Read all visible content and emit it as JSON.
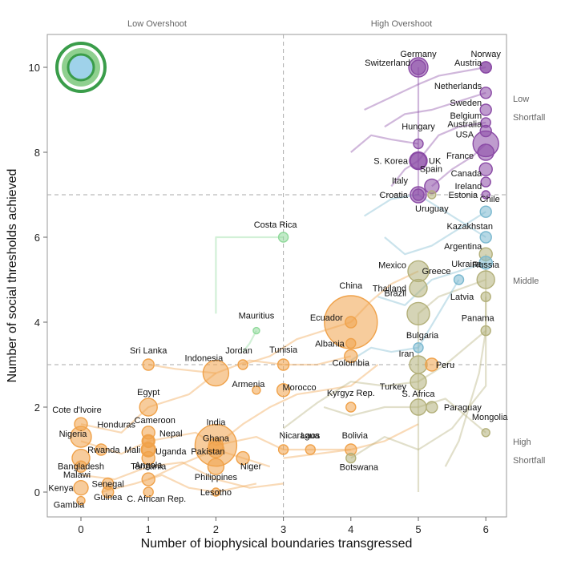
{
  "chart_data": {
    "type": "scatter",
    "xlabel": "Number of biophysical boundaries transgressed",
    "ylabel": "Number of social thresholds achieved",
    "xlim": [
      -0.45,
      6.3
    ],
    "ylim": [
      -0.3,
      10.7
    ],
    "x_ticks": [
      "0",
      "1",
      "2",
      "3",
      "4",
      "5",
      "6"
    ],
    "y_ticks": [
      "0",
      "2",
      "4",
      "6",
      "8",
      "10"
    ],
    "grid": false,
    "reference_lines": {
      "x": 3,
      "y": [
        3,
        7
      ]
    },
    "region_labels": {
      "top": [
        "Low Overshoot",
        "High Overshoot"
      ],
      "right": [
        [
          "Low",
          "Shortfall"
        ],
        [
          "Middle"
        ],
        [
          "High",
          "Shortfall"
        ]
      ]
    },
    "colors": {
      "low_overshoot_high_shortfall": "#f0a24a",
      "low_overshoot_middle": "#8fd99a",
      "high_overshoot_high_shortfall": "#b3b07a",
      "high_overshoot_middle": "#7ab8cf",
      "high_overshoot_low_shortfall": "#8a4aa5",
      "legend_ring_outer": "#3a9d4a",
      "legend_ring_inner": "#8fd08f",
      "legend_core": "#9fd2ea"
    },
    "countries": [
      {
        "name": "Germany",
        "x": 5,
        "y": 10,
        "group": "purple"
      },
      {
        "name": "Switzerland",
        "x": 5,
        "y": 10,
        "group": "purple"
      },
      {
        "name": "Norway",
        "x": 6,
        "y": 10,
        "group": "purple"
      },
      {
        "name": "Austria",
        "x": 6,
        "y": 10,
        "group": "purple"
      },
      {
        "name": "Netherlands",
        "x": 6,
        "y": 9.4,
        "group": "purple"
      },
      {
        "name": "Sweden",
        "x": 6,
        "y": 9,
        "group": "purple"
      },
      {
        "name": "Belgium",
        "x": 6,
        "y": 8.7,
        "group": "purple"
      },
      {
        "name": "Australia",
        "x": 6,
        "y": 8.5,
        "group": "purple"
      },
      {
        "name": "USA",
        "x": 6,
        "y": 8.2,
        "group": "purple"
      },
      {
        "name": "France",
        "x": 6,
        "y": 8.0,
        "group": "purple"
      },
      {
        "name": "Hungary",
        "x": 5,
        "y": 8.2,
        "group": "purple"
      },
      {
        "name": "S. Korea",
        "x": 5,
        "y": 7.8,
        "group": "purple"
      },
      {
        "name": "UK",
        "x": 5,
        "y": 7.8,
        "group": "purple"
      },
      {
        "name": "Canada",
        "x": 6,
        "y": 7.6,
        "group": "purple"
      },
      {
        "name": "Ireland",
        "x": 6,
        "y": 7.3,
        "group": "purple"
      },
      {
        "name": "Spain",
        "x": 5.2,
        "y": 7.2,
        "group": "purple"
      },
      {
        "name": "Italy",
        "x": 5,
        "y": 7.0,
        "group": "purple"
      },
      {
        "name": "Estonia",
        "x": 6,
        "y": 7.0,
        "group": "purple"
      },
      {
        "name": "Croatia",
        "x": 5,
        "y": 7.0,
        "group": "purple"
      },
      {
        "name": "Uruguay",
        "x": 5.2,
        "y": 7.0,
        "group": "olive"
      },
      {
        "name": "Chile",
        "x": 6,
        "y": 6.6,
        "group": "blue"
      },
      {
        "name": "Kazakhstan",
        "x": 6,
        "y": 6.0,
        "group": "blue"
      },
      {
        "name": "Costa Rica",
        "x": 3,
        "y": 6,
        "group": "green"
      },
      {
        "name": "Mexico",
        "x": 5,
        "y": 5.2,
        "group": "olive"
      },
      {
        "name": "Argentina",
        "x": 6,
        "y": 5.6,
        "group": "olive"
      },
      {
        "name": "Ukraine",
        "x": 6,
        "y": 5.4,
        "group": "blue"
      },
      {
        "name": "Greece",
        "x": 5.6,
        "y": 5.0,
        "group": "blue"
      },
      {
        "name": "Russia",
        "x": 6,
        "y": 5.0,
        "group": "olive"
      },
      {
        "name": "Thailand",
        "x": 5,
        "y": 4.8,
        "group": "olive"
      },
      {
        "name": "Latvia",
        "x": 6,
        "y": 4.6,
        "group": "olive"
      },
      {
        "name": "Brazil",
        "x": 5,
        "y": 4.2,
        "group": "olive"
      },
      {
        "name": "China",
        "x": 4,
        "y": 4,
        "group": "orange"
      },
      {
        "name": "Ecuador",
        "x": 4,
        "y": 4,
        "group": "orange"
      },
      {
        "name": "Panama",
        "x": 6,
        "y": 3.8,
        "group": "olive"
      },
      {
        "name": "Mauritius",
        "x": 2.6,
        "y": 3.8,
        "group": "green"
      },
      {
        "name": "Albania",
        "x": 4,
        "y": 3.5,
        "group": "orange"
      },
      {
        "name": "Bulgaria",
        "x": 5,
        "y": 3.4,
        "group": "blue"
      },
      {
        "name": "Colombia",
        "x": 4,
        "y": 3.2,
        "group": "orange"
      },
      {
        "name": "Sri Lanka",
        "x": 1,
        "y": 3,
        "group": "orange"
      },
      {
        "name": "Indonesia",
        "x": 2,
        "y": 2.8,
        "group": "orange"
      },
      {
        "name": "Jordan",
        "x": 2.4,
        "y": 3.0,
        "group": "orange"
      },
      {
        "name": "Tunisia",
        "x": 3,
        "y": 3.0,
        "group": "orange"
      },
      {
        "name": "Iran",
        "x": 5,
        "y": 3.0,
        "group": "olive"
      },
      {
        "name": "Peru",
        "x": 5.2,
        "y": 3.0,
        "group": "orange"
      },
      {
        "name": "Turkey",
        "x": 5,
        "y": 2.6,
        "group": "olive"
      },
      {
        "name": "Armenia",
        "x": 2.6,
        "y": 2.4,
        "group": "orange"
      },
      {
        "name": "Morocco",
        "x": 3,
        "y": 2.4,
        "group": "orange"
      },
      {
        "name": "Egypt",
        "x": 1,
        "y": 2,
        "group": "orange"
      },
      {
        "name": "Kyrgyz Rep.",
        "x": 4,
        "y": 2.0,
        "group": "orange"
      },
      {
        "name": "S. Africa",
        "x": 5,
        "y": 2.0,
        "group": "olive"
      },
      {
        "name": "Paraguay",
        "x": 5.2,
        "y": 2.0,
        "group": "olive"
      },
      {
        "name": "Cote d'Ivoire",
        "x": 0,
        "y": 1.6,
        "group": "orange"
      },
      {
        "name": "Nigeria",
        "x": 0,
        "y": 1.3,
        "group": "orange"
      },
      {
        "name": "Cameroon",
        "x": 1,
        "y": 1.4,
        "group": "orange"
      },
      {
        "name": "Honduras",
        "x": 1,
        "y": 1.2,
        "group": "orange"
      },
      {
        "name": "Nepal",
        "x": 1,
        "y": 1.2,
        "group": "orange"
      },
      {
        "name": "Uganda",
        "x": 1,
        "y": 1.0,
        "group": "orange"
      },
      {
        "name": "Rwanda",
        "x": 0.3,
        "y": 1.0,
        "group": "orange"
      },
      {
        "name": "Mali",
        "x": 1,
        "y": 1.0,
        "group": "orange"
      },
      {
        "name": "India",
        "x": 2,
        "y": 1.1,
        "group": "orange"
      },
      {
        "name": "Ghana",
        "x": 2,
        "y": 1.1,
        "group": "orange"
      },
      {
        "name": "Pakistan",
        "x": 2,
        "y": 1.0,
        "group": "orange"
      },
      {
        "name": "Nicaragua",
        "x": 3,
        "y": 1.0,
        "group": "orange"
      },
      {
        "name": "Laos",
        "x": 3.4,
        "y": 1.0,
        "group": "orange"
      },
      {
        "name": "Bolivia",
        "x": 4,
        "y": 1.0,
        "group": "orange"
      },
      {
        "name": "Mongolia",
        "x": 6,
        "y": 1.4,
        "group": "olive"
      },
      {
        "name": "Tanzania",
        "x": 1,
        "y": 0.8,
        "group": "orange"
      },
      {
        "name": "Niger",
        "x": 2.4,
        "y": 0.8,
        "group": "orange"
      },
      {
        "name": "Botswana",
        "x": 4,
        "y": 0.8,
        "group": "olive"
      },
      {
        "name": "Bangladesh",
        "x": 0,
        "y": 0.8,
        "group": "orange"
      },
      {
        "name": "Malawi",
        "x": 0,
        "y": 0.6,
        "group": "orange"
      },
      {
        "name": "Philippines",
        "x": 2,
        "y": 0.6,
        "group": "orange"
      },
      {
        "name": "Angola",
        "x": 1,
        "y": 0.3,
        "group": "orange"
      },
      {
        "name": "Senegal",
        "x": 0.4,
        "y": 0.2,
        "group": "orange"
      },
      {
        "name": "Kenya",
        "x": 0,
        "y": 0.1,
        "group": "orange"
      },
      {
        "name": "Lesotho",
        "x": 2,
        "y": 0.0,
        "group": "orange"
      },
      {
        "name": "Guinea",
        "x": 0.4,
        "y": 0.0,
        "group": "orange"
      },
      {
        "name": "C. African Rep.",
        "x": 1,
        "y": 0.0,
        "group": "orange"
      },
      {
        "name": "Gambia",
        "x": 0,
        "y": -0.2,
        "group": "orange"
      }
    ]
  }
}
